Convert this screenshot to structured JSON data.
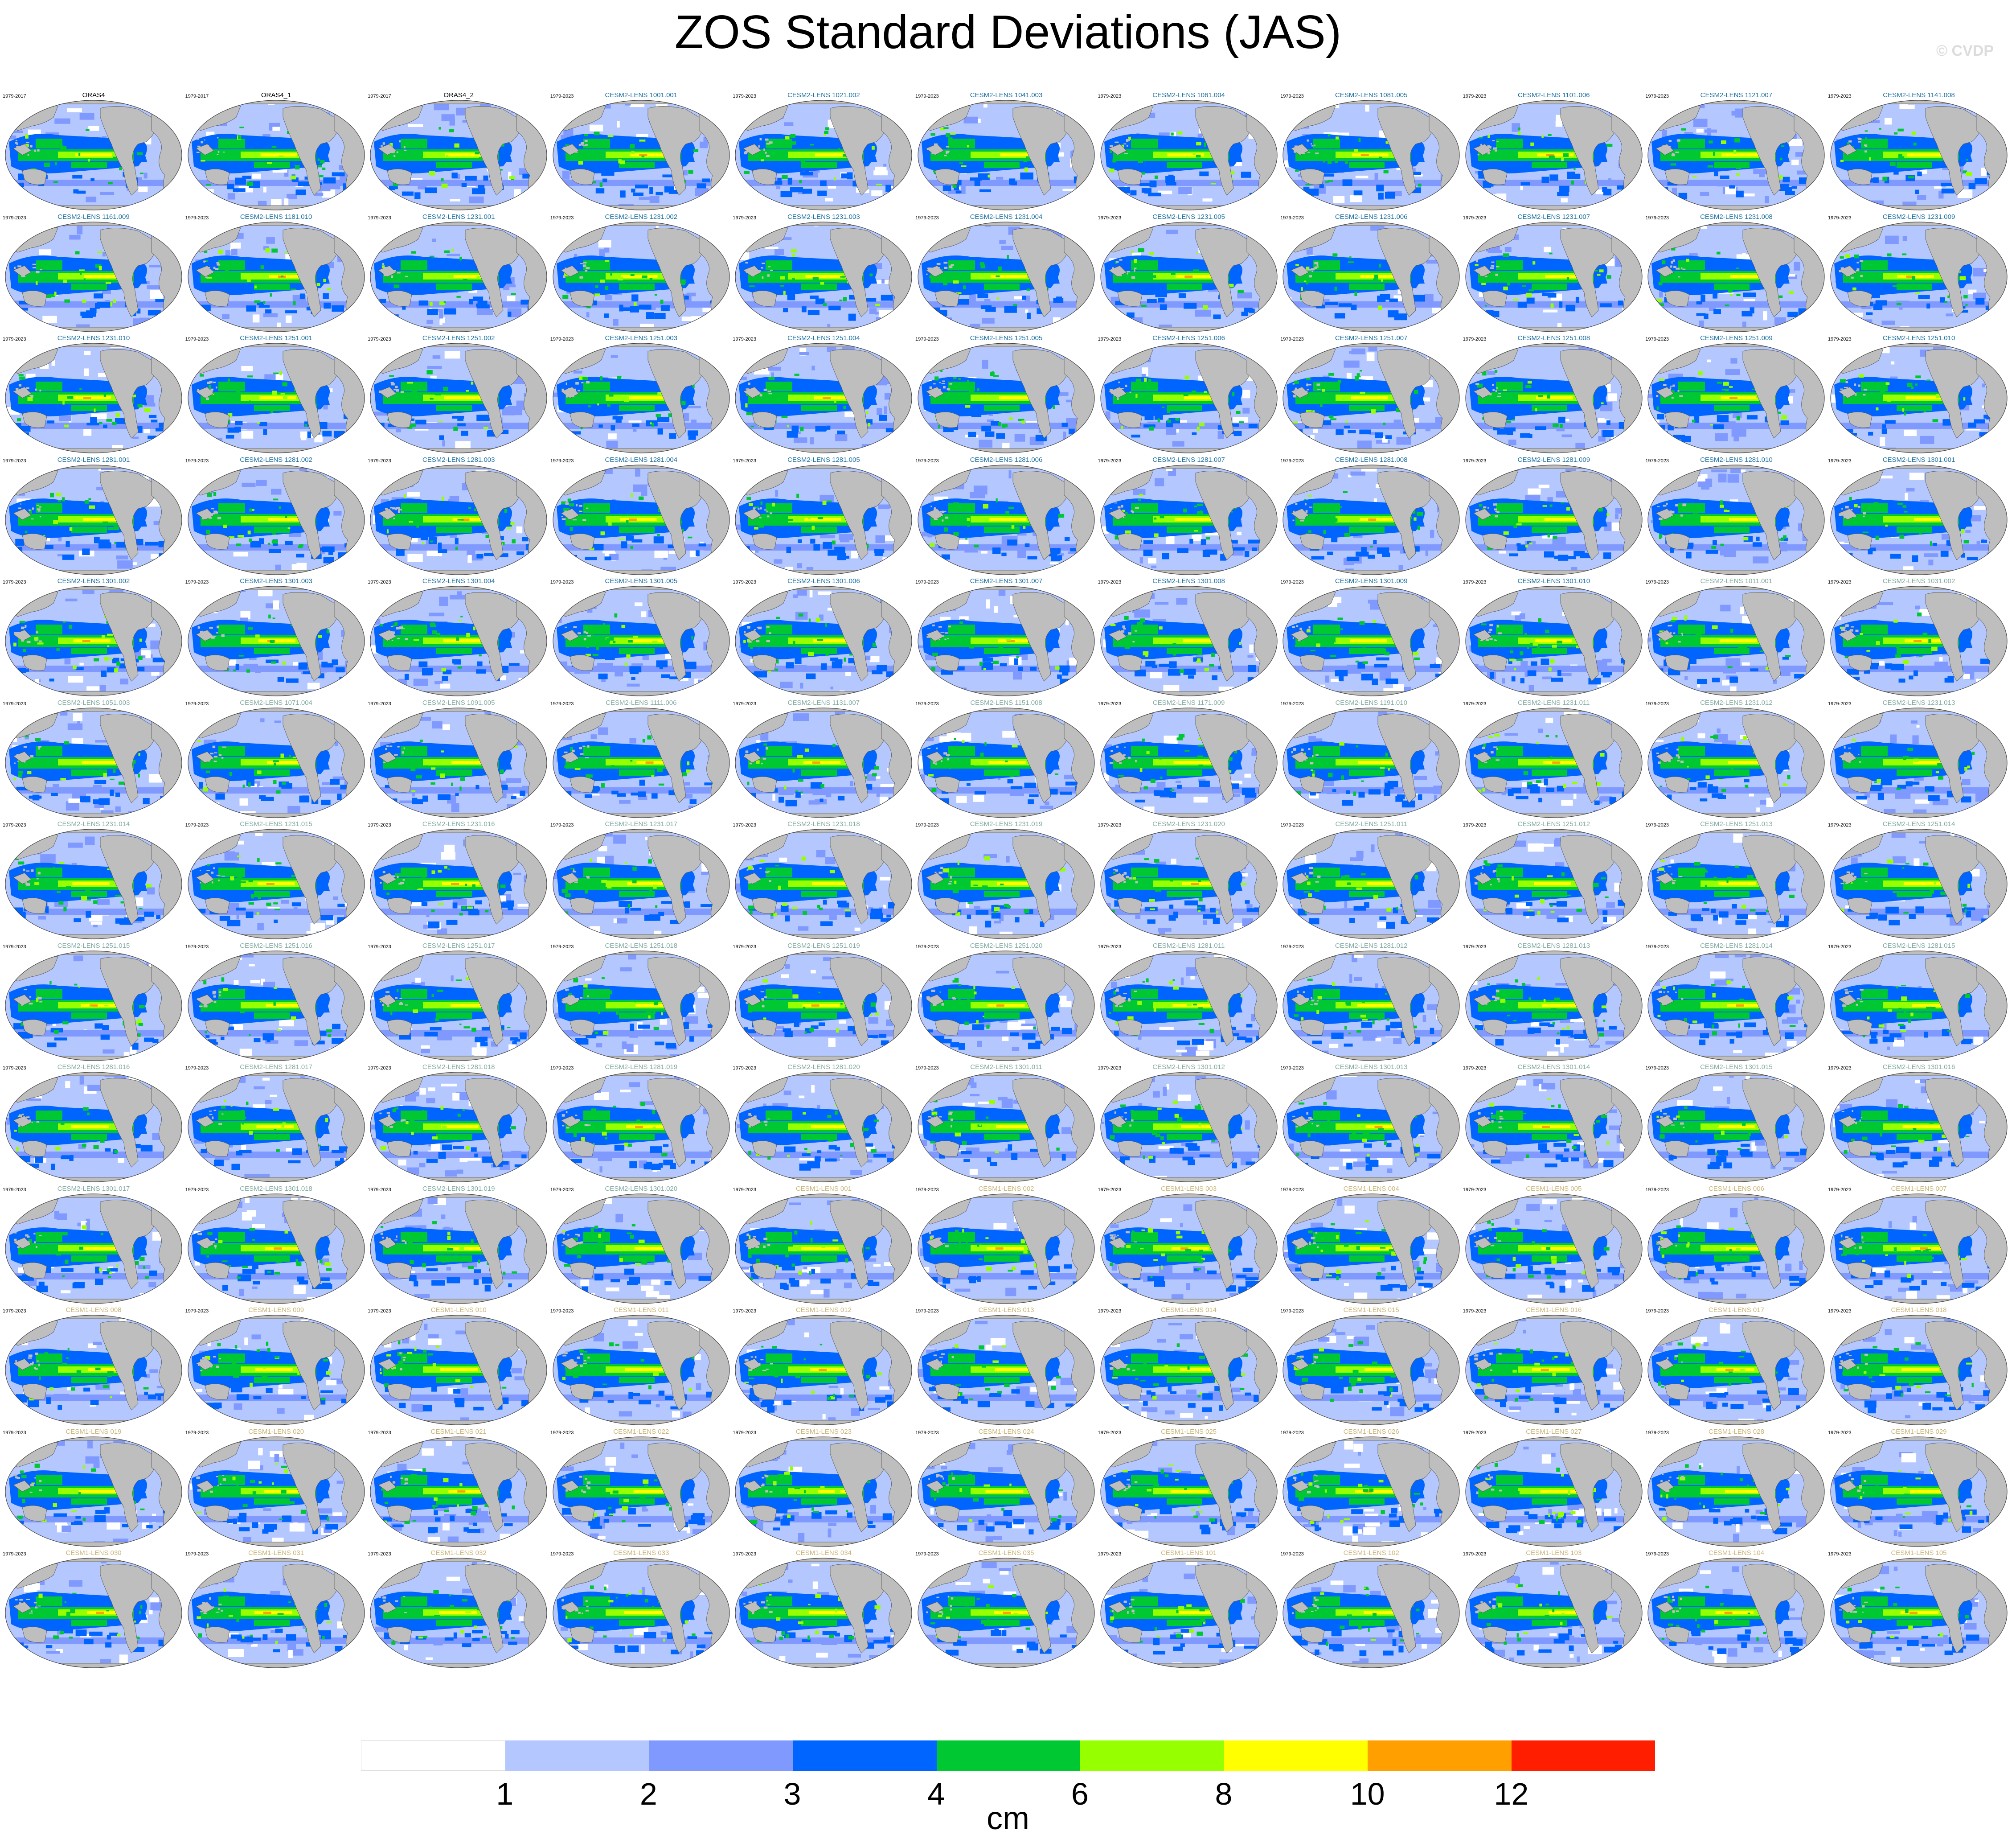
{
  "title": "ZOS Standard Deviations (JAS)",
  "credit": "© CVDP",
  "units": "cm",
  "colors": {
    "levels": [
      "#ffffff",
      "#b4c8ff",
      "#8099ff",
      "#0064ff",
      "#00c832",
      "#96ff00",
      "#ffff00",
      "#ffa000",
      "#ff1e00"
    ],
    "land": "#bebebe",
    "title_obs": "#000000",
    "title_cesm2": "#1a6fa0",
    "title_cesm2_faded": "#7fa9a0",
    "title_cesm1": "#c8b478"
  },
  "colorbar_ticks": [
    "1",
    "2",
    "3",
    "4",
    "6",
    "8",
    "10",
    "12"
  ],
  "panels": [
    {
      "label": "ORAS4",
      "years": "1979-2017",
      "style": "obs"
    },
    {
      "label": "ORAS4_1",
      "years": "1979-2017",
      "style": "obs"
    },
    {
      "label": "ORAS4_2",
      "years": "1979-2017",
      "style": "obs"
    },
    {
      "label": "CESM2-LENS 1001.001",
      "years": "1979-2023",
      "style": "cesm2"
    },
    {
      "label": "CESM2-LENS 1021.002",
      "years": "1979-2023",
      "style": "cesm2"
    },
    {
      "label": "CESM2-LENS 1041.003",
      "years": "1979-2023",
      "style": "cesm2"
    },
    {
      "label": "CESM2-LENS 1061.004",
      "years": "1979-2023",
      "style": "cesm2"
    },
    {
      "label": "CESM2-LENS 1081.005",
      "years": "1979-2023",
      "style": "cesm2"
    },
    {
      "label": "CESM2-LENS 1101.006",
      "years": "1979-2023",
      "style": "cesm2"
    },
    {
      "label": "CESM2-LENS 1121.007",
      "years": "1979-2023",
      "style": "cesm2"
    },
    {
      "label": "CESM2-LENS 1141.008",
      "years": "1979-2023",
      "style": "cesm2"
    },
    {
      "label": "CESM2-LENS 1161.009",
      "years": "1979-2023",
      "style": "cesm2"
    },
    {
      "label": "CESM2-LENS 1181.010",
      "years": "1979-2023",
      "style": "cesm2"
    },
    {
      "label": "CESM2-LENS 1231.001",
      "years": "1979-2023",
      "style": "cesm2"
    },
    {
      "label": "CESM2-LENS 1231.002",
      "years": "1979-2023",
      "style": "cesm2"
    },
    {
      "label": "CESM2-LENS 1231.003",
      "years": "1979-2023",
      "style": "cesm2"
    },
    {
      "label": "CESM2-LENS 1231.004",
      "years": "1979-2023",
      "style": "cesm2"
    },
    {
      "label": "CESM2-LENS 1231.005",
      "years": "1979-2023",
      "style": "cesm2"
    },
    {
      "label": "CESM2-LENS 1231.006",
      "years": "1979-2023",
      "style": "cesm2"
    },
    {
      "label": "CESM2-LENS 1231.007",
      "years": "1979-2023",
      "style": "cesm2"
    },
    {
      "label": "CESM2-LENS 1231.008",
      "years": "1979-2023",
      "style": "cesm2"
    },
    {
      "label": "CESM2-LENS 1231.009",
      "years": "1979-2023",
      "style": "cesm2"
    },
    {
      "label": "CESM2-LENS 1231.010",
      "years": "1979-2023",
      "style": "cesm2"
    },
    {
      "label": "CESM2-LENS 1251.001",
      "years": "1979-2023",
      "style": "cesm2"
    },
    {
      "label": "CESM2-LENS 1251.002",
      "years": "1979-2023",
      "style": "cesm2"
    },
    {
      "label": "CESM2-LENS 1251.003",
      "years": "1979-2023",
      "style": "cesm2"
    },
    {
      "label": "CESM2-LENS 1251.004",
      "years": "1979-2023",
      "style": "cesm2"
    },
    {
      "label": "CESM2-LENS 1251.005",
      "years": "1979-2023",
      "style": "cesm2"
    },
    {
      "label": "CESM2-LENS 1251.006",
      "years": "1979-2023",
      "style": "cesm2"
    },
    {
      "label": "CESM2-LENS 1251.007",
      "years": "1979-2023",
      "style": "cesm2"
    },
    {
      "label": "CESM2-LENS 1251.008",
      "years": "1979-2023",
      "style": "cesm2"
    },
    {
      "label": "CESM2-LENS 1251.009",
      "years": "1979-2023",
      "style": "cesm2"
    },
    {
      "label": "CESM2-LENS 1251.010",
      "years": "1979-2023",
      "style": "cesm2"
    },
    {
      "label": "CESM2-LENS 1281.001",
      "years": "1979-2023",
      "style": "cesm2"
    },
    {
      "label": "CESM2-LENS 1281.002",
      "years": "1979-2023",
      "style": "cesm2"
    },
    {
      "label": "CESM2-LENS 1281.003",
      "years": "1979-2023",
      "style": "cesm2"
    },
    {
      "label": "CESM2-LENS 1281.004",
      "years": "1979-2023",
      "style": "cesm2"
    },
    {
      "label": "CESM2-LENS 1281.005",
      "years": "1979-2023",
      "style": "cesm2"
    },
    {
      "label": "CESM2-LENS 1281.006",
      "years": "1979-2023",
      "style": "cesm2"
    },
    {
      "label": "CESM2-LENS 1281.007",
      "years": "1979-2023",
      "style": "cesm2"
    },
    {
      "label": "CESM2-LENS 1281.008",
      "years": "1979-2023",
      "style": "cesm2"
    },
    {
      "label": "CESM2-LENS 1281.009",
      "years": "1979-2023",
      "style": "cesm2"
    },
    {
      "label": "CESM2-LENS 1281.010",
      "years": "1979-2023",
      "style": "cesm2"
    },
    {
      "label": "CESM2-LENS 1301.001",
      "years": "1979-2023",
      "style": "cesm2"
    },
    {
      "label": "CESM2-LENS 1301.002",
      "years": "1979-2023",
      "style": "cesm2"
    },
    {
      "label": "CESM2-LENS 1301.003",
      "years": "1979-2023",
      "style": "cesm2"
    },
    {
      "label": "CESM2-LENS 1301.004",
      "years": "1979-2023",
      "style": "cesm2"
    },
    {
      "label": "CESM2-LENS 1301.005",
      "years": "1979-2023",
      "style": "cesm2"
    },
    {
      "label": "CESM2-LENS 1301.006",
      "years": "1979-2023",
      "style": "cesm2"
    },
    {
      "label": "CESM2-LENS 1301.007",
      "years": "1979-2023",
      "style": "cesm2"
    },
    {
      "label": "CESM2-LENS 1301.008",
      "years": "1979-2023",
      "style": "cesm2"
    },
    {
      "label": "CESM2-LENS 1301.009",
      "years": "1979-2023",
      "style": "cesm2"
    },
    {
      "label": "CESM2-LENS 1301.010",
      "years": "1979-2023",
      "style": "cesm2"
    },
    {
      "label": "CESM2-LENS 1011.001",
      "years": "1979-2023",
      "style": "cesm2f"
    },
    {
      "label": "CESM2-LENS 1031.002",
      "years": "1979-2023",
      "style": "cesm2f"
    },
    {
      "label": "CESM2-LENS 1051.003",
      "years": "1979-2023",
      "style": "cesm2f"
    },
    {
      "label": "CESM2-LENS 1071.004",
      "years": "1979-2023",
      "style": "cesm2f"
    },
    {
      "label": "CESM2-LENS 1091.005",
      "years": "1979-2023",
      "style": "cesm2f"
    },
    {
      "label": "CESM2-LENS 1111.006",
      "years": "1979-2023",
      "style": "cesm2f"
    },
    {
      "label": "CESM2-LENS 1131.007",
      "years": "1979-2023",
      "style": "cesm2f"
    },
    {
      "label": "CESM2-LENS 1151.008",
      "years": "1979-2023",
      "style": "cesm2f"
    },
    {
      "label": "CESM2-LENS 1171.009",
      "years": "1979-2023",
      "style": "cesm2f"
    },
    {
      "label": "CESM2-LENS 1191.010",
      "years": "1979-2023",
      "style": "cesm2f"
    },
    {
      "label": "CESM2-LENS 1231.011",
      "years": "1979-2023",
      "style": "cesm2f"
    },
    {
      "label": "CESM2-LENS 1231.012",
      "years": "1979-2023",
      "style": "cesm2f"
    },
    {
      "label": "CESM2-LENS 1231.013",
      "years": "1979-2023",
      "style": "cesm2f"
    },
    {
      "label": "CESM2-LENS 1231.014",
      "years": "1979-2023",
      "style": "cesm2f"
    },
    {
      "label": "CESM2-LENS 1231.015",
      "years": "1979-2023",
      "style": "cesm2f"
    },
    {
      "label": "CESM2-LENS 1231.016",
      "years": "1979-2023",
      "style": "cesm2f"
    },
    {
      "label": "CESM2-LENS 1231.017",
      "years": "1979-2023",
      "style": "cesm2f"
    },
    {
      "label": "CESM2-LENS 1231.018",
      "years": "1979-2023",
      "style": "cesm2f"
    },
    {
      "label": "CESM2-LENS 1231.019",
      "years": "1979-2023",
      "style": "cesm2f"
    },
    {
      "label": "CESM2-LENS 1231.020",
      "years": "1979-2023",
      "style": "cesm2f"
    },
    {
      "label": "CESM2-LENS 1251.011",
      "years": "1979-2023",
      "style": "cesm2f"
    },
    {
      "label": "CESM2-LENS 1251.012",
      "years": "1979-2023",
      "style": "cesm2f"
    },
    {
      "label": "CESM2-LENS 1251.013",
      "years": "1979-2023",
      "style": "cesm2f"
    },
    {
      "label": "CESM2-LENS 1251.014",
      "years": "1979-2023",
      "style": "cesm2f"
    },
    {
      "label": "CESM2-LENS 1251.015",
      "years": "1979-2023",
      "style": "cesm2f"
    },
    {
      "label": "CESM2-LENS 1251.016",
      "years": "1979-2023",
      "style": "cesm2f"
    },
    {
      "label": "CESM2-LENS 1251.017",
      "years": "1979-2023",
      "style": "cesm2f"
    },
    {
      "label": "CESM2-LENS 1251.018",
      "years": "1979-2023",
      "style": "cesm2f"
    },
    {
      "label": "CESM2-LENS 1251.019",
      "years": "1979-2023",
      "style": "cesm2f"
    },
    {
      "label": "CESM2-LENS 1251.020",
      "years": "1979-2023",
      "style": "cesm2f"
    },
    {
      "label": "CESM2-LENS 1281.011",
      "years": "1979-2023",
      "style": "cesm2f"
    },
    {
      "label": "CESM2-LENS 1281.012",
      "years": "1979-2023",
      "style": "cesm2f"
    },
    {
      "label": "CESM2-LENS 1281.013",
      "years": "1979-2023",
      "style": "cesm2f"
    },
    {
      "label": "CESM2-LENS 1281.014",
      "years": "1979-2023",
      "style": "cesm2f"
    },
    {
      "label": "CESM2-LENS 1281.015",
      "years": "1979-2023",
      "style": "cesm2f"
    },
    {
      "label": "CESM2-LENS 1281.016",
      "years": "1979-2023",
      "style": "cesm2f"
    },
    {
      "label": "CESM2-LENS 1281.017",
      "years": "1979-2023",
      "style": "cesm2f"
    },
    {
      "label": "CESM2-LENS 1281.018",
      "years": "1979-2023",
      "style": "cesm2f"
    },
    {
      "label": "CESM2-LENS 1281.019",
      "years": "1979-2023",
      "style": "cesm2f"
    },
    {
      "label": "CESM2-LENS 1281.020",
      "years": "1979-2023",
      "style": "cesm2f"
    },
    {
      "label": "CESM2-LENS 1301.011",
      "years": "1979-2023",
      "style": "cesm2f"
    },
    {
      "label": "CESM2-LENS 1301.012",
      "years": "1979-2023",
      "style": "cesm2f"
    },
    {
      "label": "CESM2-LENS 1301.013",
      "years": "1979-2023",
      "style": "cesm2f"
    },
    {
      "label": "CESM2-LENS 1301.014",
      "years": "1979-2023",
      "style": "cesm2f"
    },
    {
      "label": "CESM2-LENS 1301.015",
      "years": "1979-2023",
      "style": "cesm2f"
    },
    {
      "label": "CESM2-LENS 1301.016",
      "years": "1979-2023",
      "style": "cesm2f"
    },
    {
      "label": "CESM2-LENS 1301.017",
      "years": "1979-2023",
      "style": "cesm2f"
    },
    {
      "label": "CESM2-LENS 1301.018",
      "years": "1979-2023",
      "style": "cesm2f"
    },
    {
      "label": "CESM2-LENS 1301.019",
      "years": "1979-2023",
      "style": "cesm2f"
    },
    {
      "label": "CESM2-LENS 1301.020",
      "years": "1979-2023",
      "style": "cesm2f"
    },
    {
      "label": "CESM1-LENS 001",
      "years": "1979-2023",
      "style": "cesm1"
    },
    {
      "label": "CESM1-LENS 002",
      "years": "1979-2023",
      "style": "cesm1"
    },
    {
      "label": "CESM1-LENS 003",
      "years": "1979-2023",
      "style": "cesm1"
    },
    {
      "label": "CESM1-LENS 004",
      "years": "1979-2023",
      "style": "cesm1"
    },
    {
      "label": "CESM1-LENS 005",
      "years": "1979-2023",
      "style": "cesm1"
    },
    {
      "label": "CESM1-LENS 006",
      "years": "1979-2023",
      "style": "cesm1"
    },
    {
      "label": "CESM1-LENS 007",
      "years": "1979-2023",
      "style": "cesm1"
    },
    {
      "label": "CESM1-LENS 008",
      "years": "1979-2023",
      "style": "cesm1"
    },
    {
      "label": "CESM1-LENS 009",
      "years": "1979-2023",
      "style": "cesm1"
    },
    {
      "label": "CESM1-LENS 010",
      "years": "1979-2023",
      "style": "cesm1"
    },
    {
      "label": "CESM1-LENS 011",
      "years": "1979-2023",
      "style": "cesm1"
    },
    {
      "label": "CESM1-LENS 012",
      "years": "1979-2023",
      "style": "cesm1"
    },
    {
      "label": "CESM1-LENS 013",
      "years": "1979-2023",
      "style": "cesm1"
    },
    {
      "label": "CESM1-LENS 014",
      "years": "1979-2023",
      "style": "cesm1"
    },
    {
      "label": "CESM1-LENS 015",
      "years": "1979-2023",
      "style": "cesm1"
    },
    {
      "label": "CESM1-LENS 016",
      "years": "1979-2023",
      "style": "cesm1"
    },
    {
      "label": "CESM1-LENS 017",
      "years": "1979-2023",
      "style": "cesm1"
    },
    {
      "label": "CESM1-LENS 018",
      "years": "1979-2023",
      "style": "cesm1"
    },
    {
      "label": "CESM1-LENS 019",
      "years": "1979-2023",
      "style": "cesm1"
    },
    {
      "label": "CESM1-LENS 020",
      "years": "1979-2023",
      "style": "cesm1"
    },
    {
      "label": "CESM1-LENS 021",
      "years": "1979-2023",
      "style": "cesm1"
    },
    {
      "label": "CESM1-LENS 022",
      "years": "1979-2023",
      "style": "cesm1"
    },
    {
      "label": "CESM1-LENS 023",
      "years": "1979-2023",
      "style": "cesm1"
    },
    {
      "label": "CESM1-LENS 024",
      "years": "1979-2023",
      "style": "cesm1"
    },
    {
      "label": "CESM1-LENS 025",
      "years": "1979-2023",
      "style": "cesm1"
    },
    {
      "label": "CESM1-LENS 026",
      "years": "1979-2023",
      "style": "cesm1"
    },
    {
      "label": "CESM1-LENS 027",
      "years": "1979-2023",
      "style": "cesm1"
    },
    {
      "label": "CESM1-LENS 028",
      "years": "1979-2023",
      "style": "cesm1"
    },
    {
      "label": "CESM1-LENS 029",
      "years": "1979-2023",
      "style": "cesm1"
    },
    {
      "label": "CESM1-LENS 030",
      "years": "1979-2023",
      "style": "cesm1"
    },
    {
      "label": "CESM1-LENS 031",
      "years": "1979-2023",
      "style": "cesm1"
    },
    {
      "label": "CESM1-LENS 032",
      "years": "1979-2023",
      "style": "cesm1"
    },
    {
      "label": "CESM1-LENS 033",
      "years": "1979-2023",
      "style": "cesm1"
    },
    {
      "label": "CESM1-LENS 034",
      "years": "1979-2023",
      "style": "cesm1"
    },
    {
      "label": "CESM1-LENS 035",
      "years": "1979-2023",
      "style": "cesm1"
    },
    {
      "label": "CESM1-LENS 101",
      "years": "1979-2023",
      "style": "cesm1"
    },
    {
      "label": "CESM1-LENS 102",
      "years": "1979-2023",
      "style": "cesm1"
    },
    {
      "label": "CESM1-LENS 103",
      "years": "1979-2023",
      "style": "cesm1"
    },
    {
      "label": "CESM1-LENS 104",
      "years": "1979-2023",
      "style": "cesm1"
    },
    {
      "label": "CESM1-LENS 105",
      "years": "1979-2023",
      "style": "cesm1"
    }
  ]
}
